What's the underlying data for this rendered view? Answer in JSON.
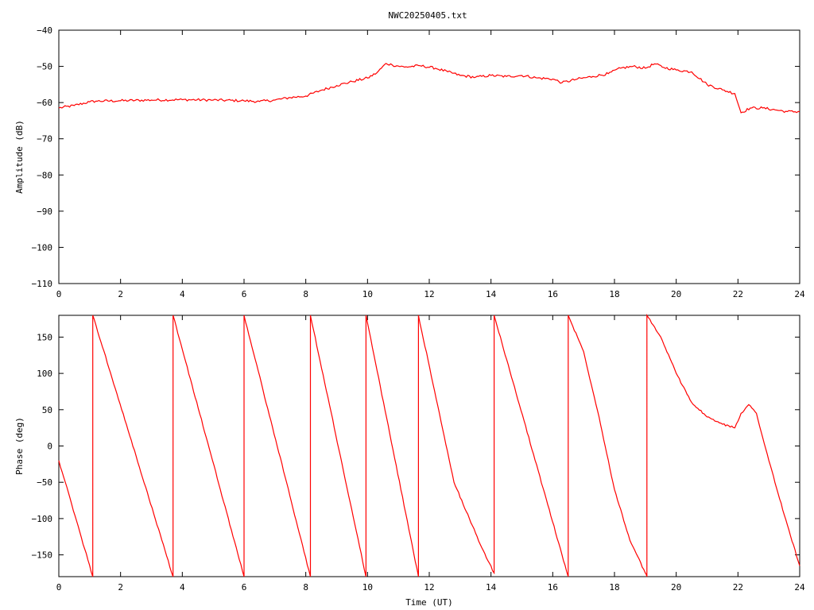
{
  "chart_data": [
    {
      "type": "line",
      "title": "NWC20250405.txt",
      "xlabel": "",
      "ylabel": "Amplitude (dB)",
      "xlim": [
        0,
        24
      ],
      "ylim": [
        -110,
        -40
      ],
      "x_ticks": [
        0,
        2,
        4,
        6,
        8,
        10,
        12,
        14,
        16,
        18,
        20,
        22,
        24
      ],
      "y_ticks": [
        -110,
        -100,
        -90,
        -80,
        -70,
        -60,
        -50,
        -40
      ],
      "grid": false,
      "color": "#ff0000",
      "series": [
        {
          "x": [
            0,
            0.5,
            1.0,
            1.2,
            2.0,
            3.0,
            4.0,
            5.0,
            6.0,
            6.5,
            7.0,
            7.5,
            8.0,
            8.5,
            9.0,
            9.5,
            10.0,
            10.3,
            10.6,
            10.8,
            11.2,
            11.7,
            12.2,
            12.6,
            13.0,
            13.5,
            14.0,
            14.5,
            15.0,
            15.5,
            16.0,
            16.3,
            16.8,
            17.3,
            17.8,
            18.2,
            18.6,
            19.0,
            19.3,
            19.6,
            20.0,
            20.5,
            21.0,
            21.5,
            21.9,
            22.1,
            22.4,
            22.8,
            23.2,
            23.6,
            24.0
          ],
          "values": [
            -61.5,
            -60.8,
            -59.8,
            -59.6,
            -59.5,
            -59.3,
            -59.2,
            -59.3,
            -59.5,
            -59.7,
            -59.3,
            -58.6,
            -58.2,
            -56.6,
            -55.3,
            -54.2,
            -53.2,
            -51.8,
            -49.2,
            -49.6,
            -50.2,
            -49.8,
            -50.5,
            -51.5,
            -52.5,
            -53.0,
            -52.5,
            -52.8,
            -52.5,
            -53.2,
            -53.5,
            -54.5,
            -53.5,
            -52.8,
            -52.0,
            -50.5,
            -50.0,
            -50.5,
            -49.3,
            -50.3,
            -51.0,
            -51.5,
            -55.0,
            -56.5,
            -57.5,
            -62.8,
            -61.5,
            -61.5,
            -62.0,
            -62.5,
            -62.5
          ]
        }
      ]
    },
    {
      "type": "line",
      "title": "",
      "xlabel": "Time (UT)",
      "ylabel": "Phase (deg)",
      "xlim": [
        0,
        24
      ],
      "ylim": [
        -180,
        180
      ],
      "x_ticks": [
        0,
        2,
        4,
        6,
        8,
        10,
        12,
        14,
        16,
        18,
        20,
        22,
        24
      ],
      "y_ticks": [
        -150,
        -100,
        -50,
        0,
        50,
        100,
        150
      ],
      "grid": false,
      "color": "#ff0000",
      "series": [
        {
          "x": [
            0.0,
            1.1,
            1.1,
            3.7,
            3.7,
            6.0,
            6.0,
            8.15,
            8.15,
            9.95,
            9.95,
            11.65,
            11.65,
            12.8,
            13.3,
            13.7,
            14.1,
            14.1,
            16.5,
            16.5,
            17.0,
            17.5,
            18.0,
            18.5,
            19.0,
            19.05,
            19.05,
            19.5,
            20.0,
            20.5,
            21.0,
            21.5,
            21.9,
            22.1,
            22.35,
            22.6,
            23.0,
            23.5,
            24.0
          ],
          "values": [
            -20,
            -180,
            180,
            -180,
            180,
            -180,
            180,
            -180,
            180,
            -180,
            180,
            -180,
            180,
            -50,
            -100,
            -140,
            -175,
            180,
            -180,
            180,
            130,
            40,
            -60,
            -130,
            -175,
            -180,
            180,
            150,
            100,
            60,
            40,
            30,
            25,
            45,
            57,
            45,
            -20,
            -95,
            -165
          ]
        }
      ]
    }
  ]
}
